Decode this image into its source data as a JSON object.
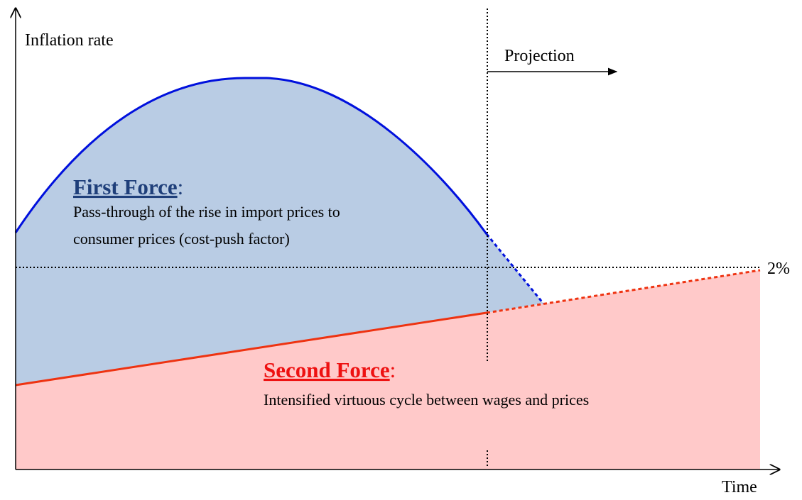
{
  "axes": {
    "y_label": "Inflation rate",
    "x_label": "Time"
  },
  "projection": "Projection",
  "target": "2%",
  "first_force": {
    "title": "First Force",
    "suffix": ":",
    "lines": [
      "Pass-through of the rise in import prices to",
      "consumer prices (cost-push factor)"
    ]
  },
  "second_force": {
    "title": "Second Force",
    "suffix": ":",
    "lines": [
      "Intensified virtuous cycle between wages and prices"
    ]
  }
}
